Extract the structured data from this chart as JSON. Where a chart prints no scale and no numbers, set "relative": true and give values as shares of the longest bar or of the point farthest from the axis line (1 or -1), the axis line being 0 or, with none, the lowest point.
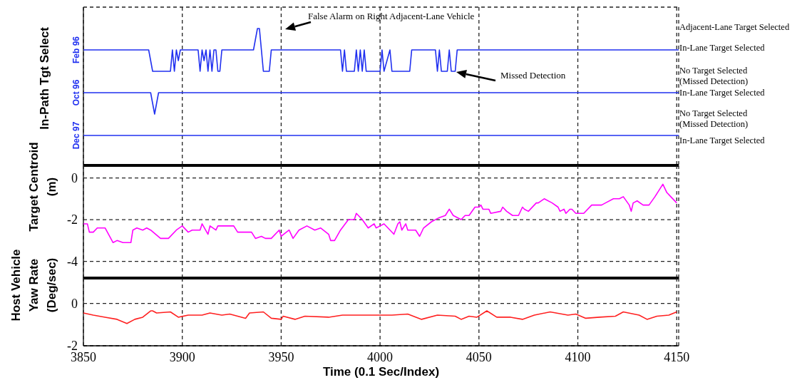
{
  "chart_data": [
    {
      "type": "line",
      "ylabel": "In-Path Tgt Select",
      "relative": true,
      "xlim": [
        3850,
        4151
      ],
      "xticks": [
        3850,
        3900,
        3950,
        4000,
        4050,
        4100,
        4150
      ],
      "grid": "x",
      "tick_labels": false,
      "annotations": [
        "False Alarm on Right Adjacent-Lane Vehicle",
        "Missed Detection",
        "Adjacent-Lane Target Selected",
        "In-Lane Target Selected",
        "No Target Selected\n(Missed Detection)",
        "In-Lane Target Selected",
        "No Target Selected\n(Missed Detection)",
        "In-Lane Target Selected"
      ],
      "series": [
        {
          "name": "Feb 96",
          "color": "#2030f0",
          "x": [
            3850,
            3883,
            3884,
            3885,
            3894,
            3895,
            3896,
            3897,
            3898,
            3899,
            3908,
            3909,
            3910,
            3911,
            3912,
            3913,
            3914,
            3915,
            3916,
            3917,
            3918,
            3919,
            3920,
            3936,
            3937,
            3938,
            3939,
            3940,
            3941,
            3944,
            3945,
            3980,
            3981,
            3982,
            3983,
            3987,
            3988,
            3989,
            3990,
            3991,
            3992,
            3993,
            4000,
            4001,
            4002,
            4005,
            4006,
            4015,
            4016,
            4028,
            4029,
            4030,
            4031,
            4034,
            4035,
            4036,
            4038,
            4039,
            4151
          ],
          "values": [
            0.8,
            0.8,
            0.7,
            0.6,
            0.6,
            0.8,
            0.6,
            0.8,
            0.7,
            0.8,
            0.8,
            0.6,
            0.8,
            0.7,
            0.8,
            0.6,
            0.8,
            0.6,
            0.8,
            0.8,
            0.6,
            0.6,
            0.8,
            0.8,
            0.9,
            1,
            1,
            0.8,
            0.6,
            0.6,
            0.8,
            0.8,
            0.6,
            0.8,
            0.6,
            0.6,
            0.8,
            0.6,
            0.8,
            0.6,
            0.8,
            0.6,
            0.6,
            0.8,
            0.6,
            0.8,
            0.6,
            0.6,
            0.8,
            0.8,
            0.6,
            0.8,
            0.6,
            0.6,
            0.8,
            0.6,
            0.6,
            0.8,
            0.8
          ]
        },
        {
          "name": "Oct 96",
          "color": "#2030f0",
          "x": [
            3850,
            3884,
            3885,
            3886,
            3887,
            3888,
            4151
          ],
          "values": [
            0.4,
            0.4,
            0.3,
            0.2,
            0.3,
            0.4,
            0.4
          ]
        },
        {
          "name": "Dec 97",
          "color": "#2030f0",
          "x": [
            3850,
            4151
          ],
          "values": [
            0,
            0
          ]
        }
      ]
    },
    {
      "type": "line",
      "ylabel": "Target Centroid\n(m)",
      "xlim": [
        3850,
        4151
      ],
      "xticks": [
        3850,
        3900,
        3950,
        4000,
        4050,
        4100,
        4150
      ],
      "ylim": [
        -4.8,
        0.6
      ],
      "yticks": [
        0,
        -2,
        -4
      ],
      "grid": true,
      "tick_labels": "y",
      "series": [
        {
          "color": "#ff00ff",
          "x": [
            3850,
            3852,
            3853,
            3855,
            3857,
            3861,
            3865,
            3867,
            3870,
            3874,
            3875,
            3877,
            3880,
            3882,
            3884,
            3889,
            3893,
            3897,
            3900,
            3903,
            3905,
            3909,
            3910,
            3913,
            3914,
            3917,
            3918,
            3926,
            3928,
            3935,
            3937,
            3940,
            3942,
            3945,
            3949,
            3950,
            3954,
            3956,
            3959,
            3963,
            3967,
            3970,
            3974,
            3975,
            3977,
            3980,
            3984,
            3987,
            3988,
            3991,
            3994,
            3997,
            3998,
            4000,
            4002,
            4004,
            4007,
            4009,
            4010,
            4011,
            4013,
            4014,
            4018,
            4020,
            4022,
            4026,
            4030,
            4033,
            4035,
            4037,
            4041,
            4043,
            4045,
            4048,
            4050,
            4051,
            4052,
            4055,
            4056,
            4061,
            4062,
            4064,
            4067,
            4070,
            4072,
            4073,
            4075,
            4079,
            4080,
            4083,
            4087,
            4090,
            4091,
            4093,
            4094,
            4096,
            4097,
            4099,
            4103,
            4107,
            4112,
            4114,
            4118,
            4121,
            4123,
            4126,
            4127,
            4128,
            4130,
            4133,
            4136,
            4139,
            4141,
            4143,
            4145,
            4147,
            4150
          ],
          "values": [
            -2.2,
            -2.2,
            -2.6,
            -2.6,
            -2.4,
            -2.4,
            -3.1,
            -3,
            -3.1,
            -3.1,
            -2.5,
            -2.4,
            -2.5,
            -2.4,
            -2.5,
            -2.9,
            -2.9,
            -2.5,
            -2.3,
            -2.6,
            -2.5,
            -2.5,
            -2.2,
            -2.7,
            -2.3,
            -2.5,
            -2.3,
            -2.3,
            -2.6,
            -2.6,
            -2.9,
            -2.8,
            -2.9,
            -2.9,
            -2.5,
            -2.8,
            -2.5,
            -2.9,
            -2.5,
            -2.3,
            -2.5,
            -2.4,
            -2.7,
            -3,
            -3,
            -2.5,
            -2,
            -2,
            -1.7,
            -2,
            -2.4,
            -2.2,
            -2.4,
            -2.3,
            -2.2,
            -2.4,
            -2.7,
            -2.2,
            -2.1,
            -2.5,
            -2.2,
            -2.5,
            -2.5,
            -2.8,
            -2.4,
            -2.1,
            -1.9,
            -1.8,
            -1.5,
            -1.8,
            -2,
            -1.8,
            -1.8,
            -1.4,
            -1.4,
            -1.3,
            -1.5,
            -1.5,
            -1.7,
            -1.6,
            -1.4,
            -1.6,
            -1.8,
            -1.8,
            -1.4,
            -1.5,
            -1.6,
            -1.2,
            -1.2,
            -1,
            -1.2,
            -1.4,
            -1.6,
            -1.5,
            -1.7,
            -1.5,
            -1.5,
            -1.7,
            -1.7,
            -1.3,
            -1.3,
            -1.2,
            -1,
            -1,
            -0.9,
            -1.3,
            -1.6,
            -1.2,
            -1.1,
            -1.3,
            -1.3,
            -0.9,
            -0.6,
            -0.3,
            -0.7,
            -0.9,
            -1.2
          ]
        }
      ]
    },
    {
      "type": "line",
      "ylabel": "Host Vehicle\nYaw Rate\n(Deg/sec)",
      "xlabel": "Time (0.1 Sec/Index)",
      "xlim": [
        3850,
        4151
      ],
      "xticks": [
        3850,
        3900,
        3950,
        4000,
        4050,
        4100,
        4150
      ],
      "ylim": [
        -2,
        1.2
      ],
      "yticks": [
        0,
        -2
      ],
      "grid": true,
      "series": [
        {
          "color": "#ff2020",
          "x": [
            3850,
            3855,
            3861,
            3867,
            3872,
            3876,
            3880,
            3884,
            3885,
            3887,
            3894,
            3898,
            3903,
            3910,
            3914,
            3920,
            3924,
            3932,
            3934,
            3941,
            3945,
            3950,
            3951,
            3957,
            3962,
            3974,
            3981,
            3989,
            3999,
            4006,
            4014,
            4021,
            4029,
            4038,
            4041,
            4045,
            4049,
            4054,
            4059,
            4066,
            4072,
            4078,
            4086,
            4095,
            4099,
            4104,
            4111,
            4119,
            4123,
            4131,
            4135,
            4140,
            4146,
            4150
          ],
          "values": [
            -0.45,
            -0.55,
            -0.65,
            -0.75,
            -0.95,
            -0.75,
            -0.65,
            -0.35,
            -0.35,
            -0.45,
            -0.4,
            -0.65,
            -0.55,
            -0.55,
            -0.45,
            -0.55,
            -0.5,
            -0.7,
            -0.45,
            -0.4,
            -0.7,
            -0.75,
            -0.6,
            -0.75,
            -0.6,
            -0.65,
            -0.55,
            -0.55,
            -0.55,
            -0.55,
            -0.5,
            -0.75,
            -0.55,
            -0.6,
            -0.75,
            -0.6,
            -0.65,
            -0.35,
            -0.65,
            -0.65,
            -0.75,
            -0.55,
            -0.4,
            -0.55,
            -0.5,
            -0.7,
            -0.65,
            -0.6,
            -0.4,
            -0.55,
            -0.75,
            -0.6,
            -0.55,
            -0.4
          ]
        }
      ]
    }
  ]
}
